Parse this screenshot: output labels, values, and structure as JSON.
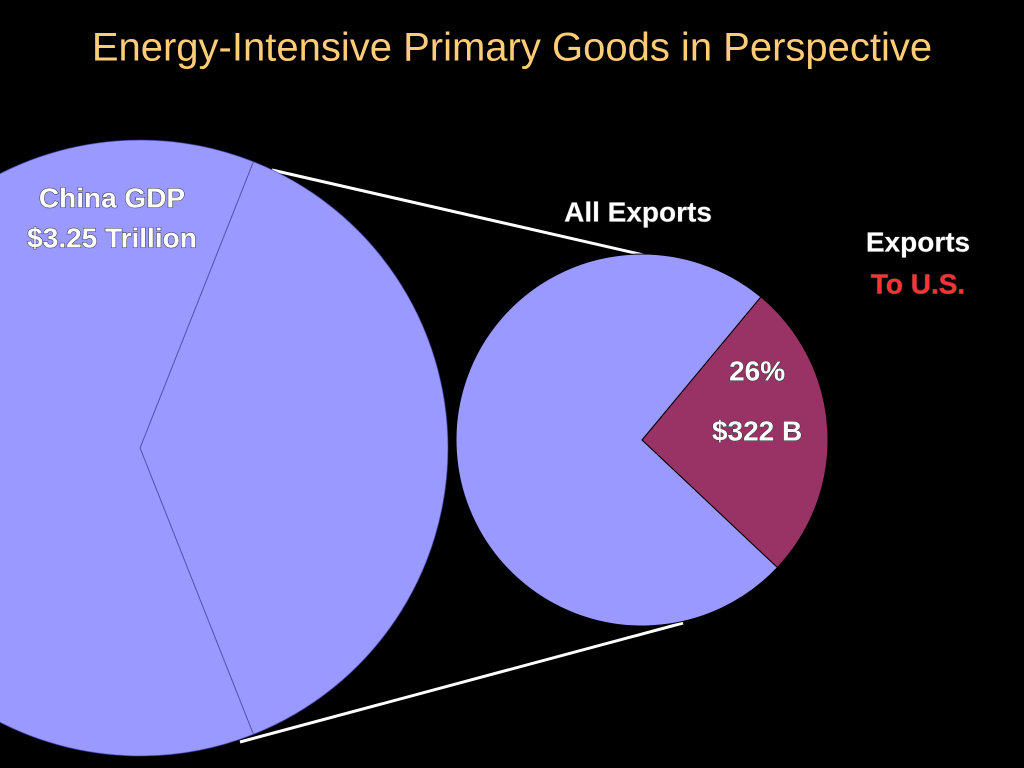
{
  "title": "Energy-Intensive Primary Goods in Perspective",
  "chart_data": [
    {
      "type": "pie",
      "label": [
        "China GDP",
        "$3.25 Trillion"
      ],
      "values": [
        38,
        62
      ],
      "colors": [
        "#9999ff",
        "#9999ff"
      ]
    },
    {
      "type": "pie",
      "title": "All Exports",
      "values": [
        26,
        74
      ],
      "value_labels": [
        "26%",
        null
      ],
      "amount_labels": [
        "$322 B",
        null
      ],
      "categories": [
        [
          "Exports",
          "To U.S."
        ],
        null
      ],
      "colors": [
        "#993366",
        "#9999ff"
      ]
    }
  ]
}
